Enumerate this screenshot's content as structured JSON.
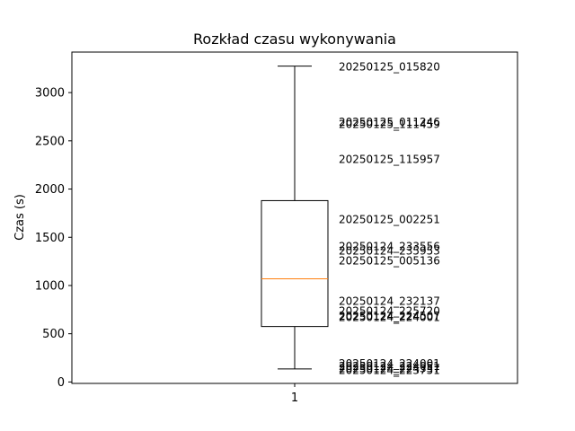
{
  "chart_data": {
    "type": "box",
    "title": "Rozkład czasu wykonywania",
    "xlabel": "",
    "ylabel": "Czas (s)",
    "ylim": [
      -15,
      3420
    ],
    "yticks": [
      0,
      500,
      1000,
      1500,
      2000,
      2500,
      3000
    ],
    "xticks": [
      "1"
    ],
    "grid": false,
    "boxes": [
      {
        "category": "1",
        "whisker_low": 135,
        "q1": 575,
        "median": 1070,
        "q3": 1880,
        "whisker_high": 3275
      }
    ],
    "annotations": [
      {
        "label": "20250125_015820",
        "value": 3270
      },
      {
        "label": "20250125_011246",
        "value": 2700
      },
      {
        "label": "20250125_111459",
        "value": 2675
      },
      {
        "label": "20250125_115957",
        "value": 2310
      },
      {
        "label": "20250125_002251",
        "value": 1690
      },
      {
        "label": "20250124_233556",
        "value": 1410
      },
      {
        "label": "20250124_235953",
        "value": 1365
      },
      {
        "label": "20250125_005136",
        "value": 1260
      },
      {
        "label": "20250124_232137",
        "value": 840
      },
      {
        "label": "20250124_225720",
        "value": 740
      },
      {
        "label": "20250124_224507",
        "value": 690
      },
      {
        "label": "20250124_224001",
        "value": 675
      },
      {
        "label": "20250124_224001",
        "value": 195
      },
      {
        "label": "20250124_224051",
        "value": 165
      },
      {
        "label": "20250124_224357",
        "value": 145
      },
      {
        "label": "20250124_223751",
        "value": 125
      }
    ],
    "colors": {
      "box": "#000000",
      "median": "#ff7f0e",
      "axes": "#000000"
    }
  }
}
